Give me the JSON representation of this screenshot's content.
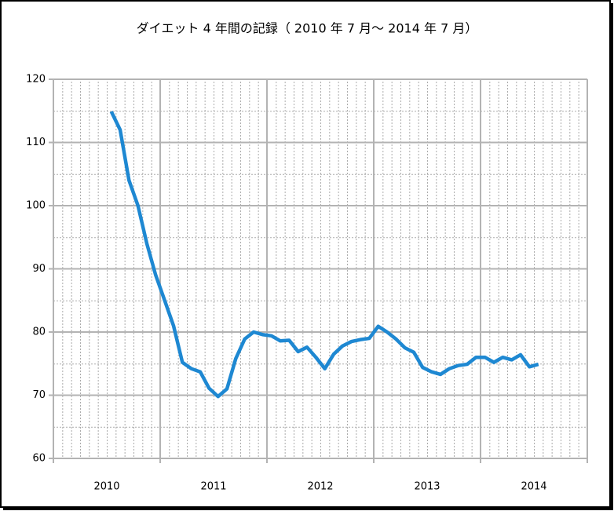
{
  "chart_data": {
    "type": "line",
    "title": "ダイエット 4 年間の記録（ 2010 年 7 月～ 2014 年 7 月）",
    "x": [
      2010.542,
      2010.625,
      2010.708,
      2010.792,
      2010.875,
      2010.958,
      2011.042,
      2011.125,
      2011.208,
      2011.292,
      2011.375,
      2011.458,
      2011.542,
      2011.625,
      2011.708,
      2011.792,
      2011.875,
      2011.958,
      2012.042,
      2012.125,
      2012.208,
      2012.292,
      2012.375,
      2012.458,
      2012.542,
      2012.625,
      2012.708,
      2012.792,
      2012.875,
      2012.958,
      2013.042,
      2013.125,
      2013.208,
      2013.292,
      2013.375,
      2013.458,
      2013.542,
      2013.625,
      2013.708,
      2013.792,
      2013.875,
      2013.958,
      2014.042,
      2014.125,
      2014.208,
      2014.292,
      2014.375,
      2014.458,
      2014.542
    ],
    "series": [
      {
        "color": "#1e88d2",
        "values": [
          114.9,
          112,
          104,
          100,
          94,
          89,
          85,
          81,
          75.2,
          74.2,
          73.7,
          71.1,
          69.8,
          71,
          75.8,
          78.9,
          80,
          79.6,
          79.4,
          78.6,
          78.7,
          76.9,
          77.6,
          76,
          74.2,
          76.5,
          77.8,
          78.5,
          78.8,
          79,
          80.9,
          80,
          78.9,
          77.5,
          76.8,
          74.4,
          73.7,
          73.3,
          74.2,
          74.7,
          74.9,
          76,
          76,
          75.2,
          76,
          75.6,
          76.4,
          74.5,
          74.9
        ]
      }
    ],
    "xlim": [
      2010,
      2015
    ],
    "xticks": [
      2010,
      2011,
      2012,
      2013,
      2014,
      2015
    ],
    "x_labels": [
      {
        "value": 2010.5,
        "label": "2010"
      },
      {
        "value": 2011.5,
        "label": "2011"
      },
      {
        "value": 2012.5,
        "label": "2012"
      },
      {
        "value": 2013.5,
        "label": "2013"
      },
      {
        "value": 2014.5,
        "label": "2014"
      }
    ],
    "ylim": [
      60,
      120
    ],
    "yticks": [
      60,
      70,
      80,
      90,
      100,
      110,
      120
    ],
    "grid": true
  }
}
